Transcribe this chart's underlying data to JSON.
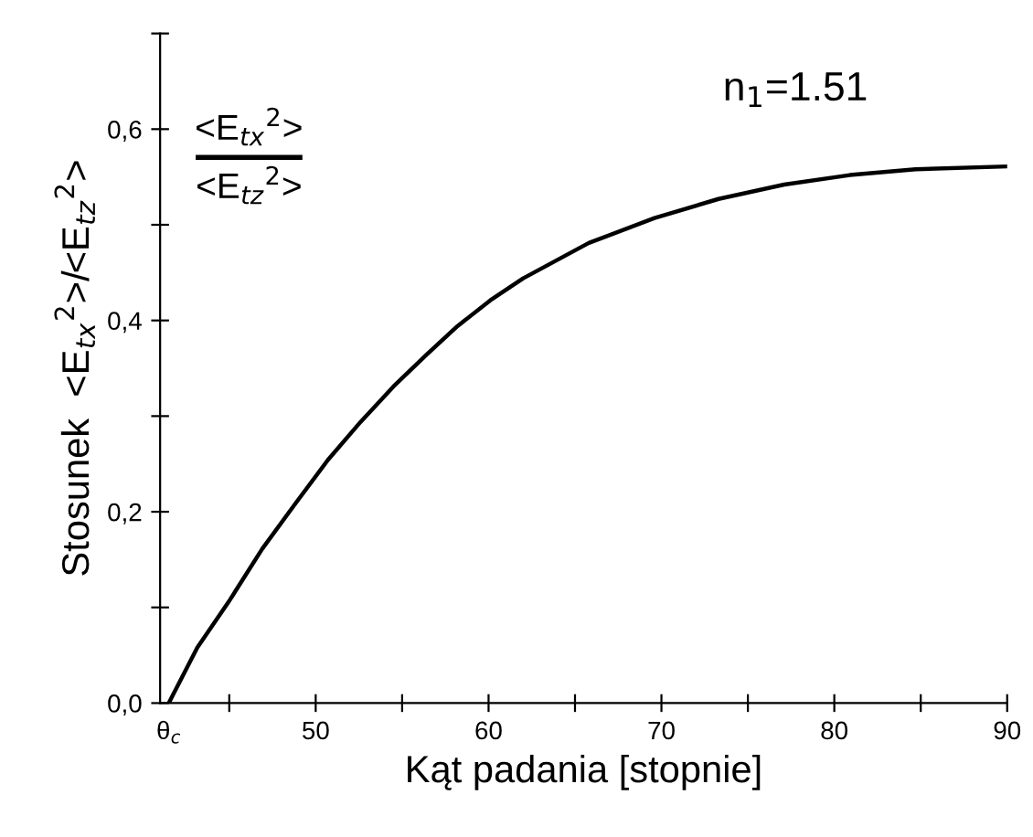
{
  "chart_data": {
    "type": "line",
    "xlabel": "Kąt padania [stopnie]",
    "ylabel": "Stosunek  <E$_{tx}$$^{2}$>/<E$_{tz}$$^{2}$>",
    "annotations": [
      "n$_{1}$=1.51",
      "<E$_{tx}$$^{2}$>",
      "<E$_{tz}$$^{2}$>"
    ],
    "series": [
      {
        "color": "#000000",
        "x": [
          41.5,
          43.15,
          45.04,
          46.9,
          48.8,
          50.7,
          52.6,
          54.5,
          56.4,
          58.2,
          60.1,
          62.0,
          65.8,
          69.6,
          73.3,
          77.1,
          80.9,
          84.7,
          90
        ],
        "values": [
          0,
          0.058,
          0.108,
          0.161,
          0.208,
          0.254,
          0.294,
          0.331,
          0.364,
          0.394,
          0.421,
          0.444,
          0.481,
          0.507,
          0.527,
          0.542,
          0.552,
          0.558,
          0.561
        ]
      }
    ],
    "xlim": [
      41,
      90
    ],
    "xticks": [
      {
        "value": 41.5,
        "label": "θ$_{c}$"
      },
      {
        "value": 45,
        "label": null
      },
      50,
      {
        "value": 55,
        "label": null
      },
      60,
      {
        "value": 65,
        "label": null
      },
      70,
      {
        "value": 75,
        "label": null
      },
      80,
      {
        "value": 85,
        "label": null
      },
      90
    ],
    "ylim": [
      0,
      0.7
    ],
    "yticks": [
      {
        "value": 0,
        "label": "0,0"
      },
      {
        "value": 0.1,
        "label": null
      },
      {
        "value": 0.2,
        "label": "0,2"
      },
      {
        "value": 0.3,
        "label": null
      },
      {
        "value": 0.4,
        "label": "0,4"
      },
      {
        "value": 0.5,
        "label": null
      },
      {
        "value": 0.6,
        "label": "0,6"
      },
      {
        "value": 0.7,
        "label": null
      }
    ],
    "grid": false,
    "legend": false,
    "marker": "none",
    "line_style": "solid"
  }
}
